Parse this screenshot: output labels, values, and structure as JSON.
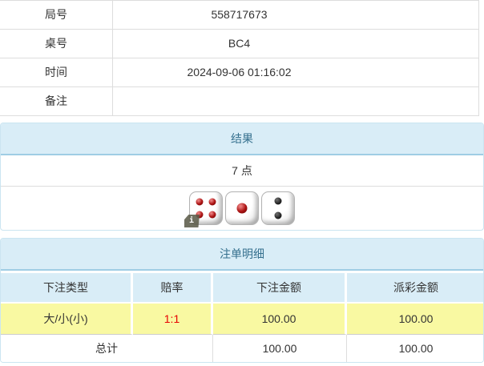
{
  "info_table": {
    "rows": [
      {
        "label": "局号",
        "value": "558717673"
      },
      {
        "label": "桌号",
        "value": "BC4"
      },
      {
        "label": "时间",
        "value": "2024-09-06 01:16:02"
      },
      {
        "label": "备注",
        "value": ""
      }
    ]
  },
  "result_panel": {
    "title": "结果",
    "points": "7 点",
    "dice": [
      {
        "value": 4,
        "color": "red"
      },
      {
        "value": 1,
        "color": "red"
      },
      {
        "value": 2,
        "color": "black"
      }
    ],
    "info_badge": "i"
  },
  "bets_panel": {
    "title": "注单明细",
    "columns": [
      "下注类型",
      "赔率",
      "下注金额",
      "派彩金额"
    ],
    "rows": [
      {
        "bet_type": "大/小(小)",
        "odds": "1:1",
        "bet_amount": "100.00",
        "payout_amount": "100.00",
        "highlighted": true
      }
    ],
    "total": {
      "label": "总计",
      "bet_amount": "100.00",
      "payout_amount": "100.00"
    }
  },
  "colors": {
    "panel_header_bg": "#d9edf7",
    "panel_header_text": "#35708e",
    "panel_border": "#cbe5f1",
    "header_separator_blue": "#9fcde4",
    "table_border_gray": "#dddddd",
    "highlight_yellow": "#f9f9a2",
    "odds_red": "#e60000",
    "text": "#333333",
    "dice_pip_red": "#aa1111",
    "dice_pip_black": "#222222"
  }
}
